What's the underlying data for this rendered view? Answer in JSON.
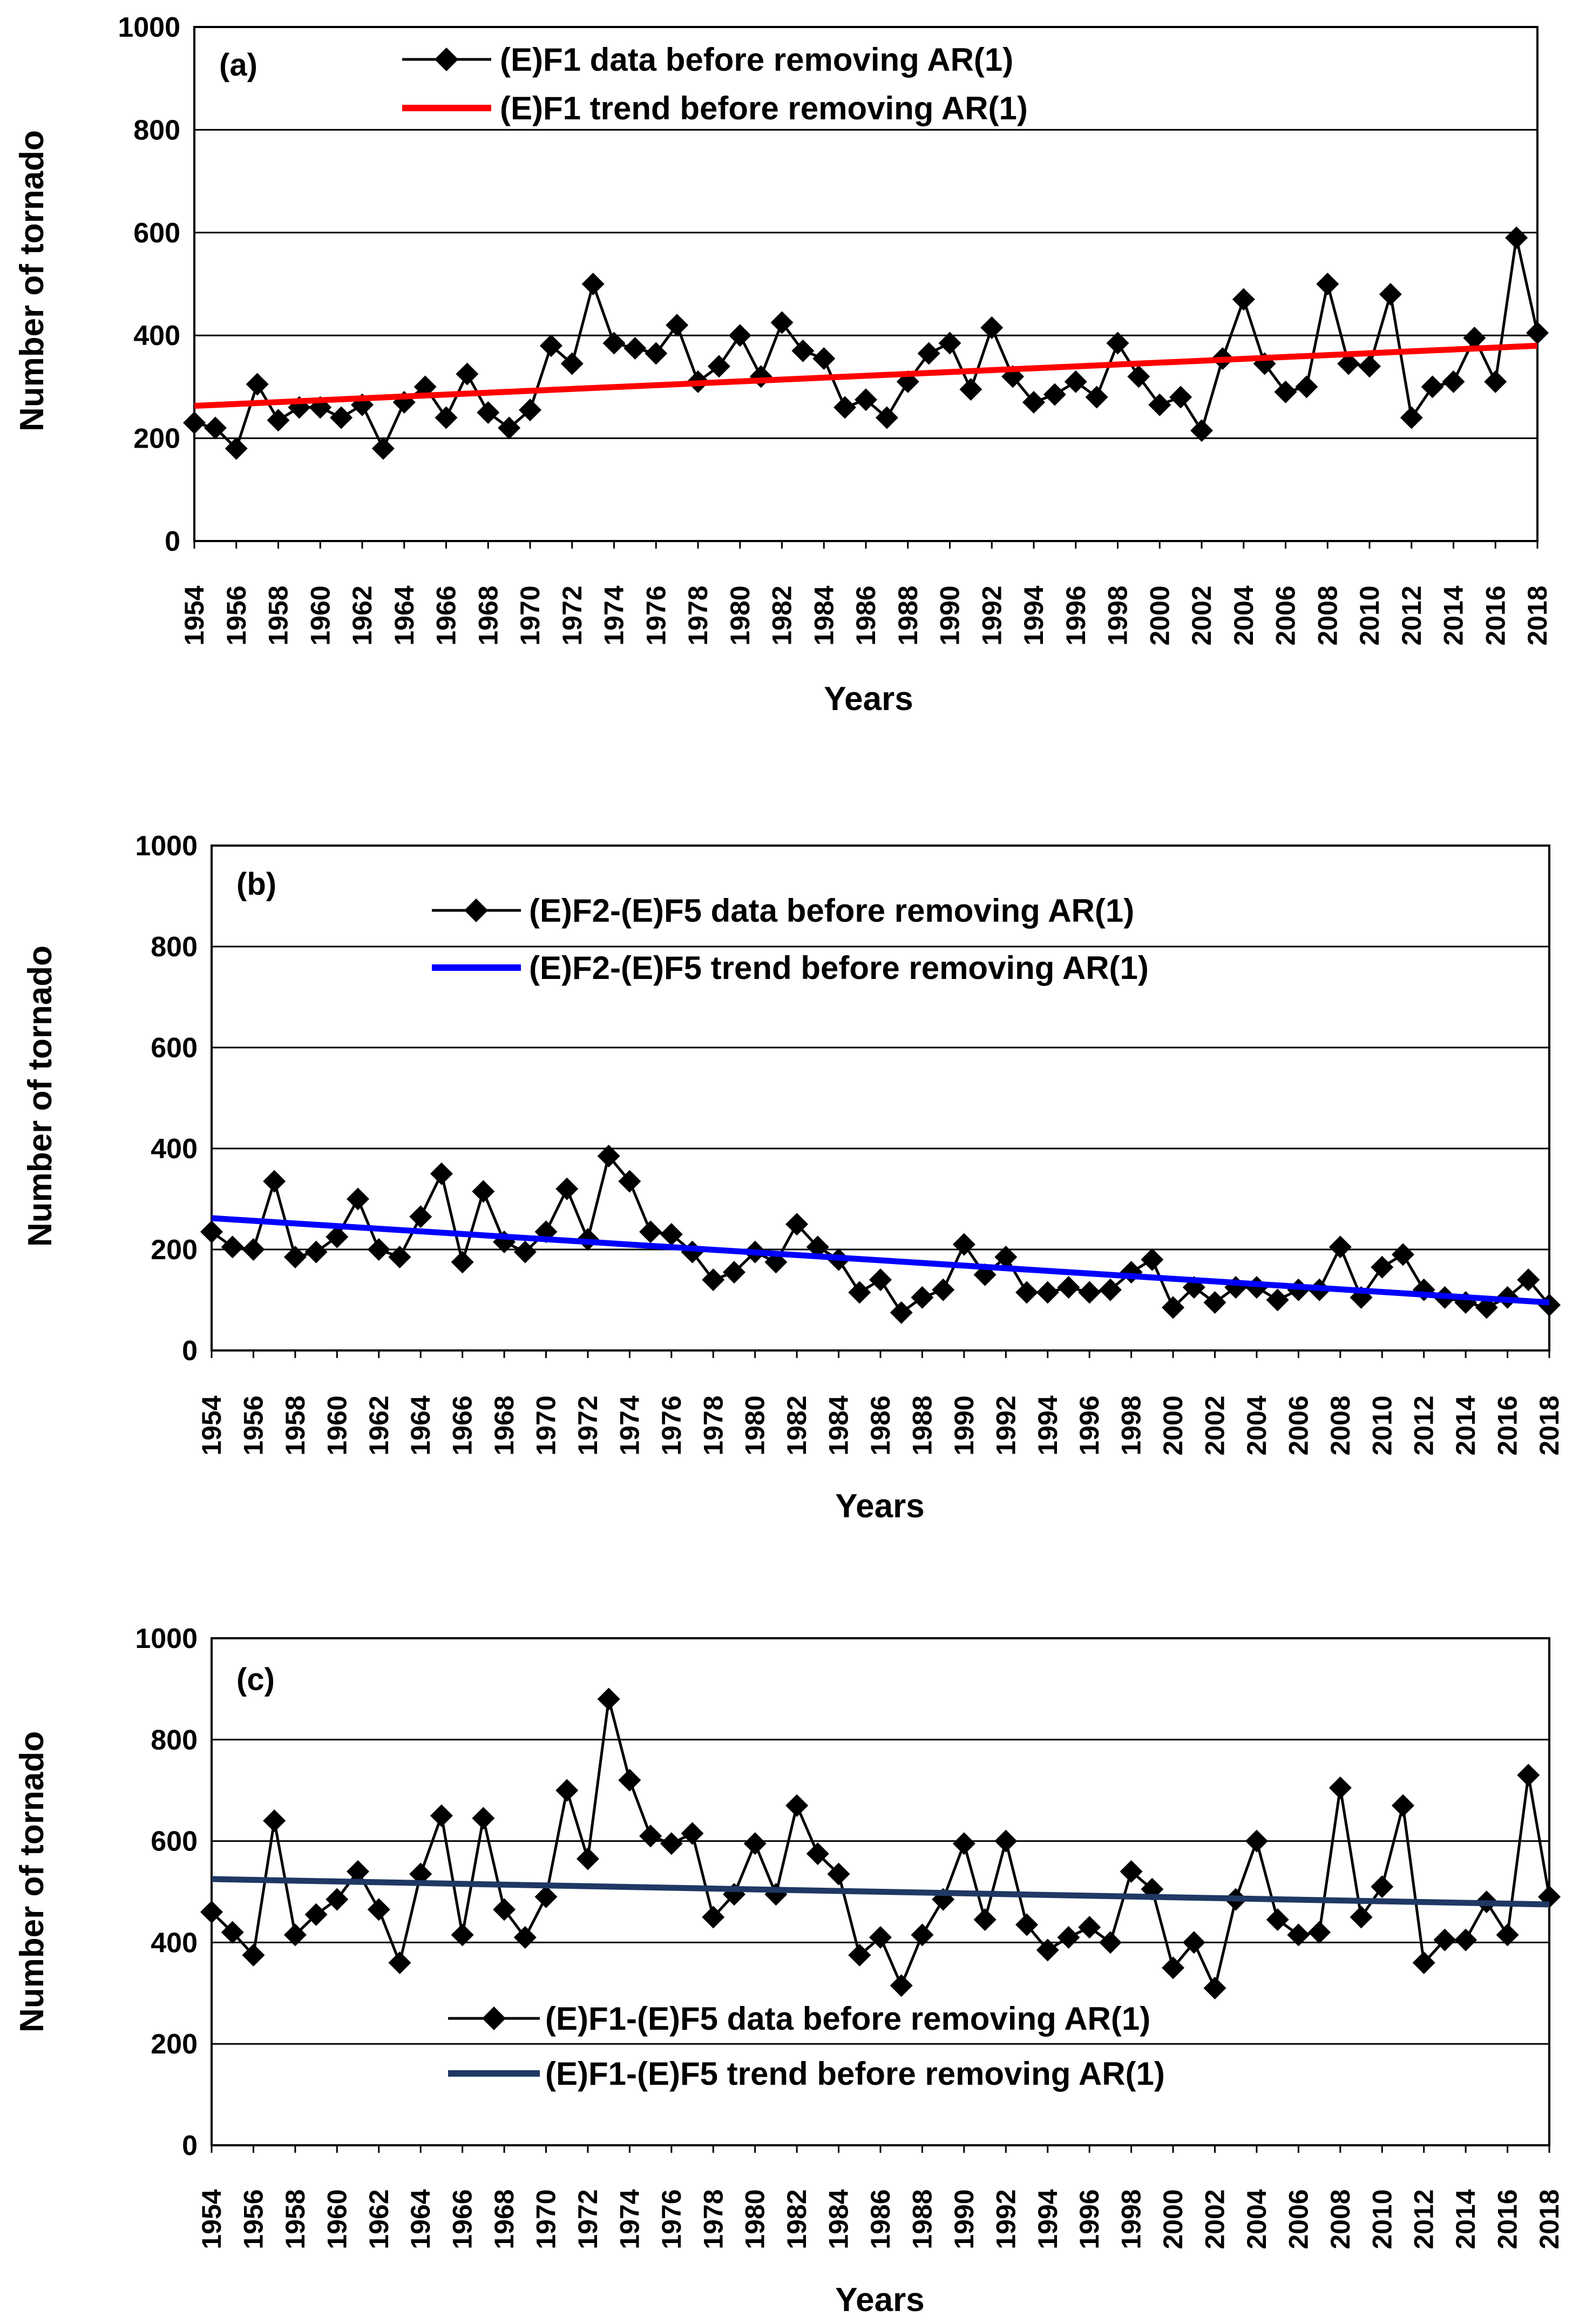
{
  "chart_data": [
    {
      "type": "line",
      "panel_label": "(a)",
      "xlabel": "Years",
      "ylabel": "Number of tornado",
      "ylim": [
        0,
        1000
      ],
      "yticks": [
        "0",
        "200",
        "400",
        "600",
        "800",
        "1000"
      ],
      "xtick_labels": [
        "1954",
        "1956",
        "1958",
        "1960",
        "1962",
        "1964",
        "1966",
        "1968",
        "1970",
        "1972",
        "1974",
        "1976",
        "1978",
        "1980",
        "1982",
        "1984",
        "1986",
        "1988",
        "1990",
        "1992",
        "1994",
        "1996",
        "1998",
        "2000",
        "2002",
        "2004",
        "2006",
        "2008",
        "2010",
        "2012",
        "2014",
        "2016",
        "2018"
      ],
      "x_start": 1954,
      "x_end": 2018,
      "grid": true,
      "legend_position": "top-center",
      "series": [
        {
          "name": "(E)F1 data before removing AR(1)",
          "kind": "data",
          "color": "#000000",
          "marker": "diamond",
          "values": [
            230,
            220,
            180,
            305,
            235,
            260,
            260,
            240,
            265,
            180,
            270,
            300,
            240,
            325,
            250,
            220,
            255,
            380,
            345,
            500,
            385,
            375,
            365,
            420,
            310,
            340,
            400,
            320,
            425,
            370,
            355,
            260,
            275,
            240,
            310,
            365,
            385,
            295,
            415,
            320,
            270,
            285,
            310,
            280,
            385,
            320,
            265,
            280,
            215,
            355,
            470,
            345,
            290,
            300,
            500,
            345,
            340,
            480,
            240,
            300,
            310,
            395,
            310,
            590,
            405
          ]
        },
        {
          "name": "(E)F1 trend before removing AR(1)",
          "kind": "trend",
          "color": "#ff0000",
          "start": 263,
          "end": 380
        }
      ]
    },
    {
      "type": "line",
      "panel_label": "(b)",
      "xlabel": "Years",
      "ylabel": "Number of tornado",
      "ylim": [
        0,
        1000
      ],
      "yticks": [
        "0",
        "200",
        "400",
        "600",
        "800",
        "1000"
      ],
      "xtick_labels": [
        "1954",
        "1956",
        "1958",
        "1960",
        "1962",
        "1964",
        "1966",
        "1968",
        "1970",
        "1972",
        "1974",
        "1976",
        "1978",
        "1980",
        "1982",
        "1984",
        "1986",
        "1988",
        "1990",
        "1992",
        "1994",
        "1996",
        "1998",
        "2000",
        "2002",
        "2004",
        "2006",
        "2008",
        "2010",
        "2012",
        "2014",
        "2016",
        "2018"
      ],
      "x_start": 1954,
      "x_end": 2018,
      "grid": true,
      "legend_position": "top-center",
      "series": [
        {
          "name": "(E)F2-(E)F5 data before removing AR(1)",
          "kind": "data",
          "color": "#000000",
          "marker": "diamond",
          "values": [
            235,
            205,
            200,
            335,
            185,
            195,
            225,
            300,
            200,
            185,
            265,
            350,
            175,
            315,
            215,
            195,
            235,
            320,
            220,
            385,
            335,
            235,
            230,
            195,
            140,
            155,
            195,
            175,
            250,
            205,
            180,
            115,
            140,
            75,
            105,
            120,
            210,
            150,
            185,
            115,
            115,
            125,
            115,
            120,
            155,
            180,
            85,
            125,
            95,
            125,
            125,
            100,
            120,
            120,
            205,
            105,
            165,
            190,
            120,
            105,
            95,
            85,
            105,
            140,
            90
          ]
        },
        {
          "name": "(E)F2-(E)F5 trend before removing AR(1)",
          "kind": "trend",
          "color": "#0000ff",
          "start": 262,
          "end": 95
        }
      ]
    },
    {
      "type": "line",
      "panel_label": "(c)",
      "xlabel": "Years",
      "ylabel": "Number of tornado",
      "ylim": [
        0,
        1000
      ],
      "yticks": [
        "0",
        "200",
        "400",
        "600",
        "800",
        "1000"
      ],
      "xtick_labels": [
        "1954",
        "1956",
        "1958",
        "1960",
        "1962",
        "1964",
        "1966",
        "1968",
        "1970",
        "1972",
        "1974",
        "1976",
        "1978",
        "1980",
        "1982",
        "1984",
        "1986",
        "1988",
        "1990",
        "1992",
        "1994",
        "1996",
        "1998",
        "2000",
        "2002",
        "2004",
        "2006",
        "2008",
        "2010",
        "2012",
        "2014",
        "2016",
        "2018"
      ],
      "x_start": 1954,
      "x_end": 2018,
      "grid": true,
      "legend_position": "bottom-center",
      "series": [
        {
          "name": "(E)F1-(E)F5 data before removing AR(1)",
          "kind": "data",
          "color": "#000000",
          "marker": "diamond",
          "values": [
            460,
            420,
            375,
            640,
            415,
            455,
            485,
            540,
            465,
            360,
            535,
            650,
            415,
            645,
            465,
            410,
            490,
            700,
            565,
            880,
            720,
            610,
            595,
            615,
            450,
            495,
            595,
            495,
            670,
            575,
            535,
            375,
            410,
            315,
            415,
            485,
            595,
            445,
            600,
            435,
            385,
            410,
            430,
            400,
            540,
            505,
            350,
            400,
            310,
            485,
            600,
            445,
            415,
            420,
            705,
            450,
            510,
            670,
            360,
            405,
            405,
            480,
            415,
            730,
            490
          ]
        },
        {
          "name": "(E)F1-(E)F5 trend before removing AR(1)",
          "kind": "trend",
          "color": "#1f3864",
          "start": 525,
          "end": 475
        }
      ]
    }
  ]
}
